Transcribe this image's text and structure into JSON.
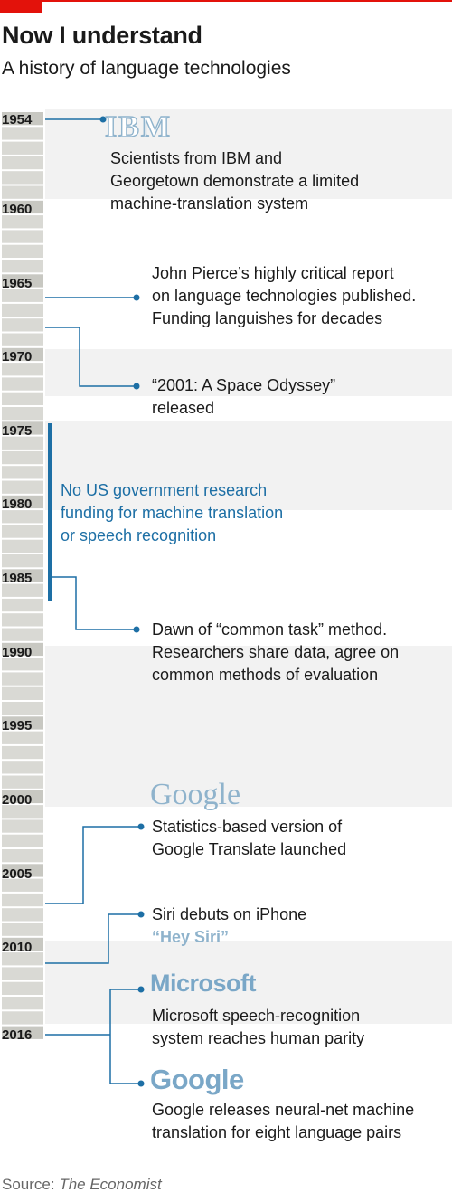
{
  "header": {
    "title": "Now I understand",
    "subtitle": "A history of language technologies"
  },
  "colors": {
    "accent_red": "#e3120b",
    "connector_blue": "#1d6fa5",
    "logo_blue": "#8fb3cc",
    "band_grey": "#f2f2f2",
    "ruler_grey": "#d5d5d0"
  },
  "chart_data": {
    "type": "timeline",
    "xlim": [
      1954,
      2016
    ],
    "year_labels": [
      "1954",
      "1960",
      "1965",
      "1970",
      "1975",
      "1980",
      "1985",
      "1990",
      "1995",
      "2000",
      "2005",
      "2010",
      "2016"
    ],
    "events": [
      {
        "year": 1954,
        "logo": "IBM",
        "lines": [
          "Scientists from IBM and",
          "Georgetown demonstrate a limited",
          "machine-translation system"
        ]
      },
      {
        "year": 1966,
        "lines": [
          "John Pierce’s highly critical report",
          "on language technologies published.",
          "Funding languishes for decades"
        ]
      },
      {
        "year": 1968,
        "lines": [
          "“2001: A Space Odyssey”",
          "released"
        ]
      },
      {
        "year_range": [
          1975,
          1986
        ],
        "lines": [
          "No US government research",
          "funding for machine translation",
          "or speech recognition"
        ]
      },
      {
        "year": 1986,
        "lines": [
          "Dawn of “common task” method.",
          "Researchers share data, agree on",
          "common methods of evaluation"
        ]
      },
      {
        "year": 2006,
        "logo": "Google",
        "lines": [
          "Statistics-based version of",
          "Google Translate launched"
        ]
      },
      {
        "year": 2011,
        "lines": [
          "Siri debuts on iPhone"
        ],
        "extra": "“Hey Siri”"
      },
      {
        "year": 2016,
        "logo": "Microsoft",
        "lines": [
          "Microsoft speech-recognition",
          "system reaches human parity"
        ]
      },
      {
        "year": 2016,
        "logo": "Google",
        "lines": [
          "Google releases neural-net machine",
          "translation for eight language pairs"
        ]
      }
    ]
  },
  "logos": {
    "ibm": "IBM",
    "google_old": "Google",
    "microsoft": "Microsoft",
    "google_new": "Google"
  },
  "footer": {
    "source_label": "Source: ",
    "source_name": "The Economist"
  }
}
